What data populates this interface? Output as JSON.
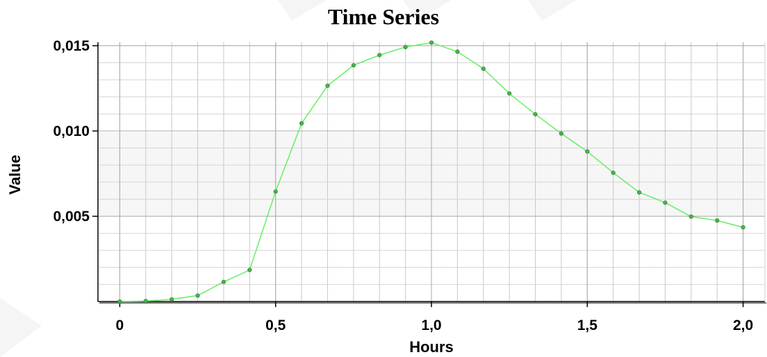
{
  "chart_data": {
    "type": "line",
    "title": "Time Series",
    "xlabel": "Hours",
    "ylabel": "Value",
    "xlim": [
      -0.07,
      2.07
    ],
    "ylim": [
      0,
      0.0152
    ],
    "x_ticks": [
      0,
      0.5,
      1.0,
      1.5,
      2.0
    ],
    "x_tick_labels": [
      "0",
      "0,5",
      "1,0",
      "1,5",
      "2,0"
    ],
    "y_ticks": [
      0.005,
      0.01,
      0.015
    ],
    "y_tick_labels": [
      "0,005",
      "0,010",
      "0,015"
    ],
    "grid": true,
    "line_color": "#66ee66",
    "marker_color": "#4caf50",
    "series": [
      {
        "x": [
          0,
          0.0833,
          0.1667,
          0.25,
          0.3333,
          0.4167,
          0.5,
          0.5833,
          0.6667,
          0.75,
          0.8333,
          0.9167,
          1.0,
          1.0833,
          1.1667,
          1.25,
          1.3333,
          1.4167,
          1.5,
          1.5833,
          1.6667,
          1.75,
          1.8333,
          1.9167,
          2.0
        ],
        "values": [
          0.0,
          3e-05,
          0.00013,
          0.00035,
          0.00115,
          0.00185,
          0.00645,
          0.01045,
          0.01265,
          0.01385,
          0.01445,
          0.01492,
          0.01518,
          0.01465,
          0.01365,
          0.0122,
          0.01098,
          0.00985,
          0.0088,
          0.00755,
          0.0064,
          0.0058,
          0.00498,
          0.00475,
          0.00435
        ]
      }
    ]
  }
}
